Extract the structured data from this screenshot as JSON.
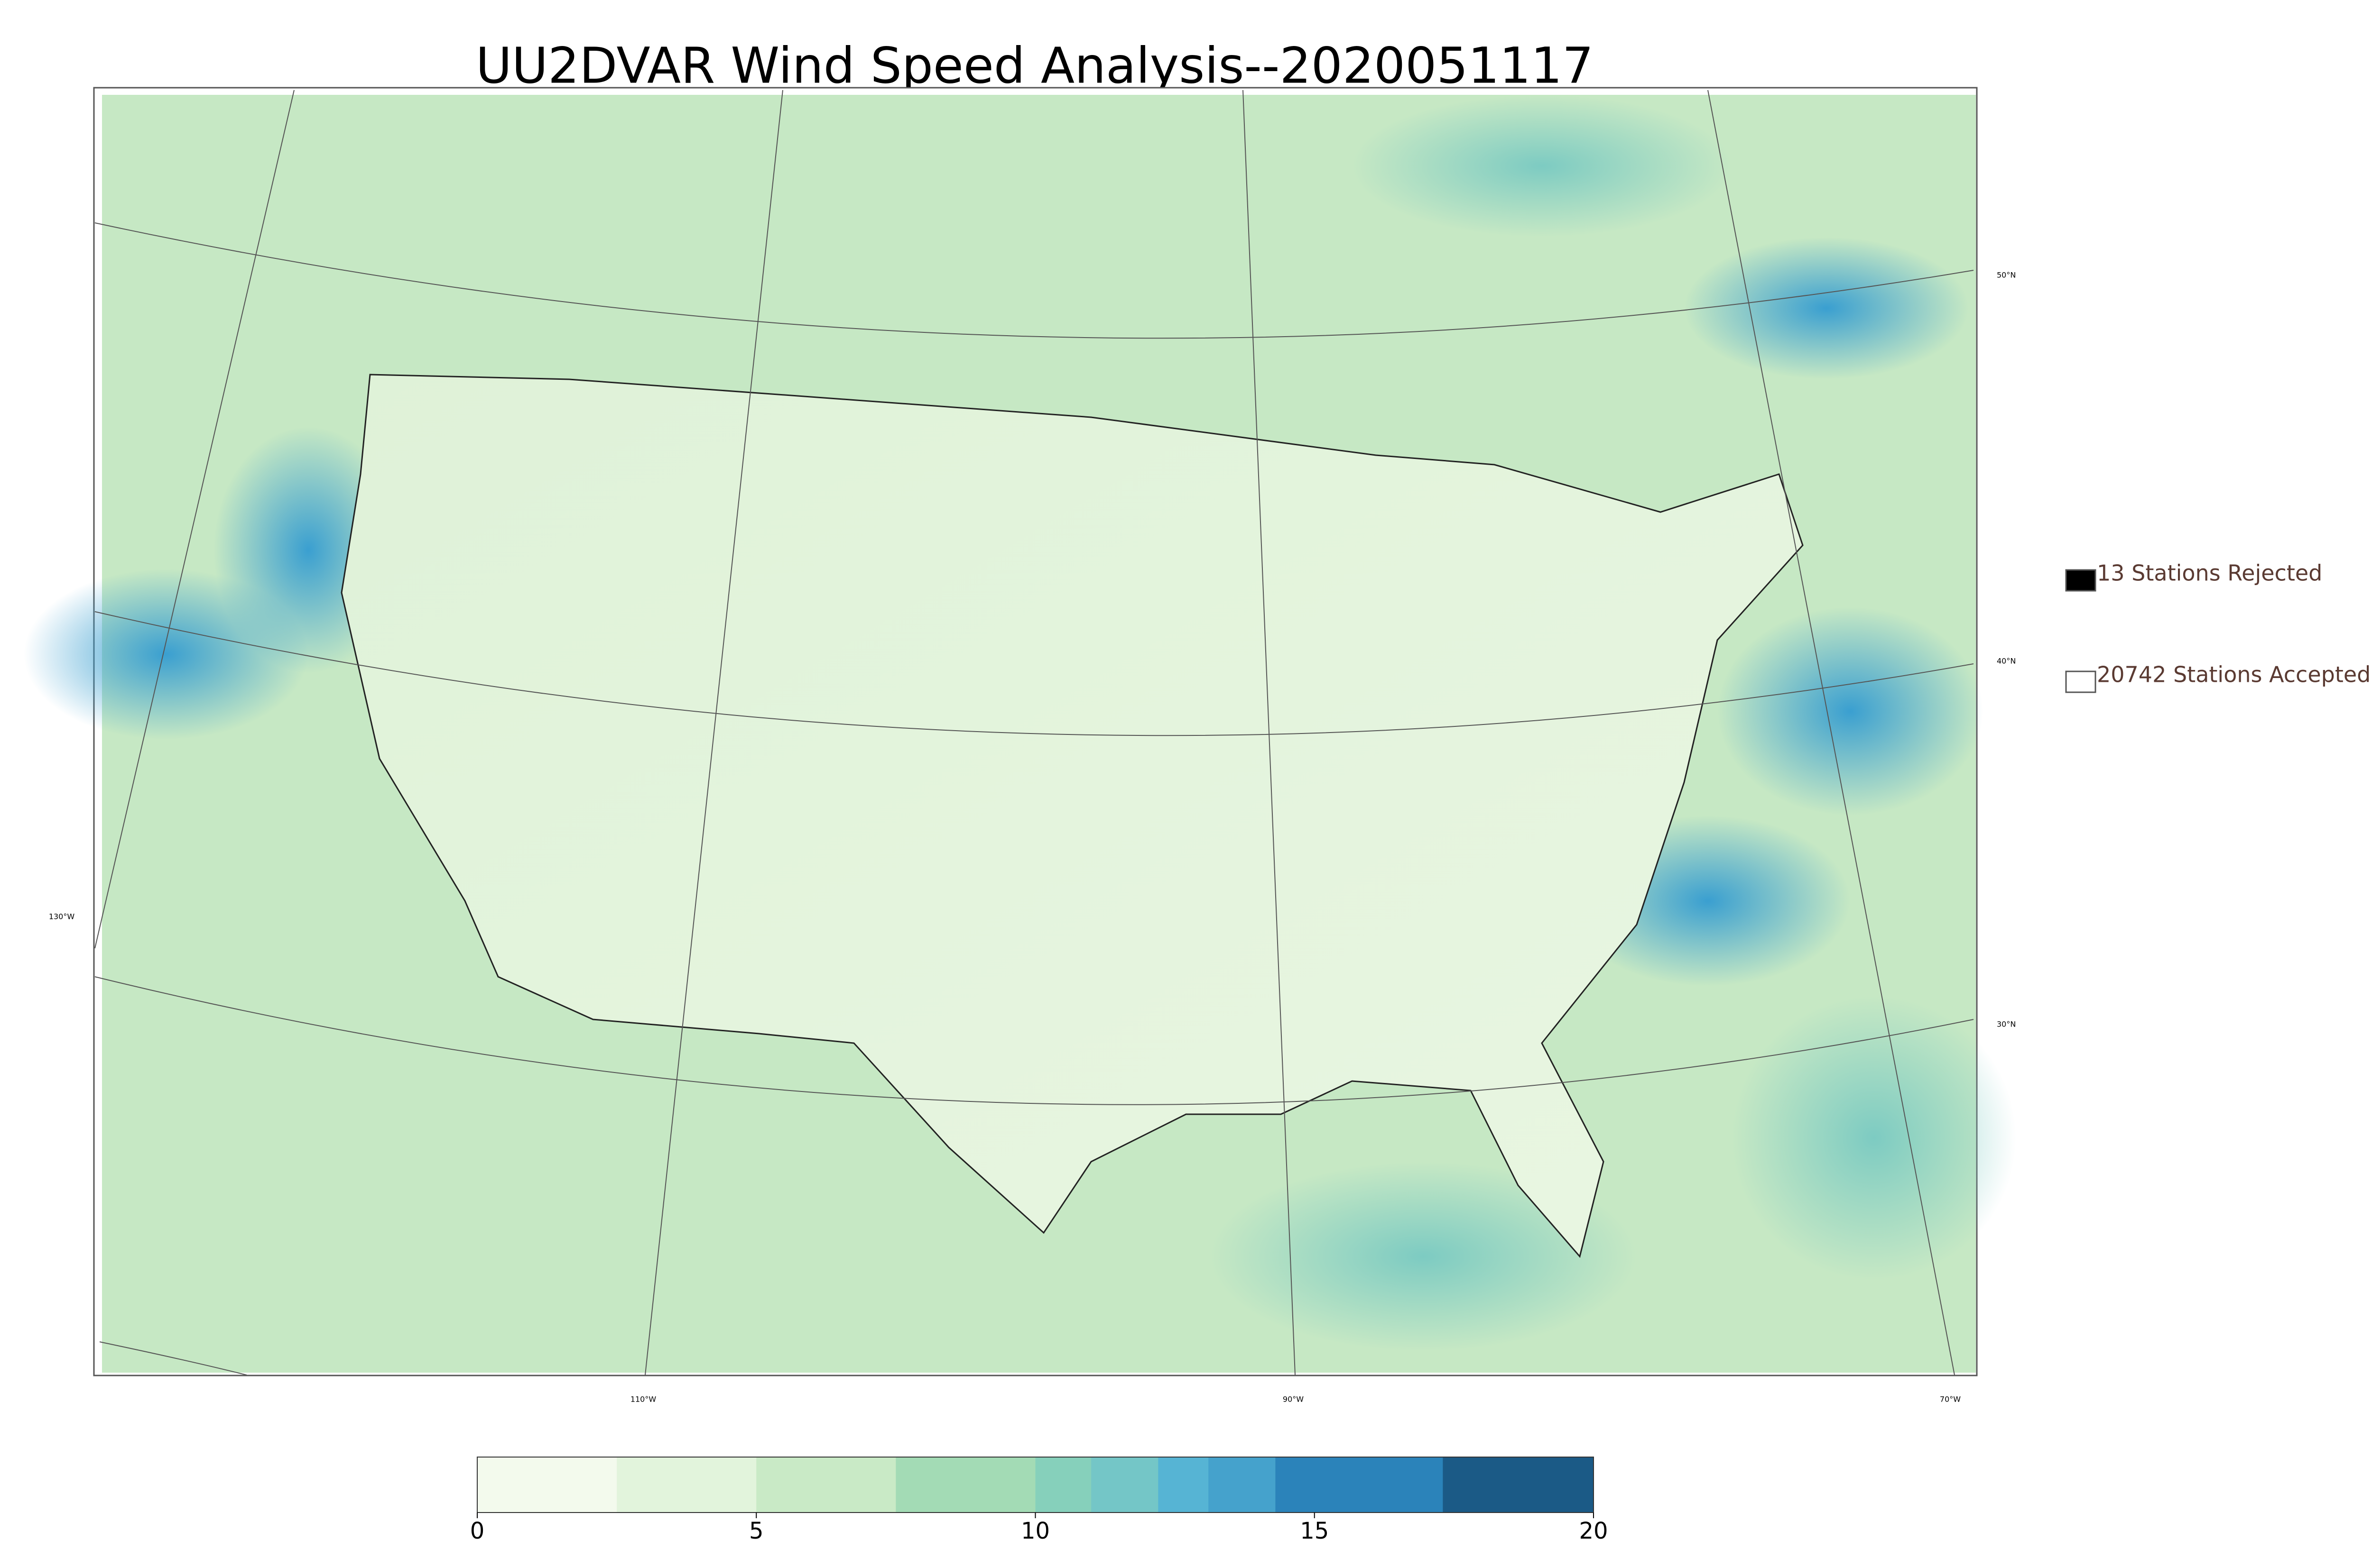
{
  "title": "UU2DVAR Wind Speed Analysis--2020051117",
  "map": {
    "lat_labels": [
      "50°N",
      "40°N",
      "30°N"
    ],
    "lon_labels": [
      "130°W",
      "110°W",
      "90°W",
      "70°W"
    ]
  },
  "legend": [
    {
      "label": "13 Stations Rejected",
      "color": "#000000"
    },
    {
      "label": "20742 Stations Accepted",
      "color": "#ffffff"
    }
  ],
  "colorbar": {
    "range": [
      0,
      20
    ],
    "ticks": [
      0,
      5,
      10,
      15,
      20
    ],
    "bounds": [
      0,
      2.5,
      5,
      7.5,
      10,
      11,
      12.2,
      13.1,
      14.3,
      17.3,
      20
    ],
    "colors": [
      "#f3faed",
      "#e2f4dc",
      "#c9eac6",
      "#a3dbb5",
      "#86d0bb",
      "#74c6c7",
      "#56b4d4",
      "#45a2cc",
      "#2b83ba",
      "#1b5a86"
    ]
  }
}
